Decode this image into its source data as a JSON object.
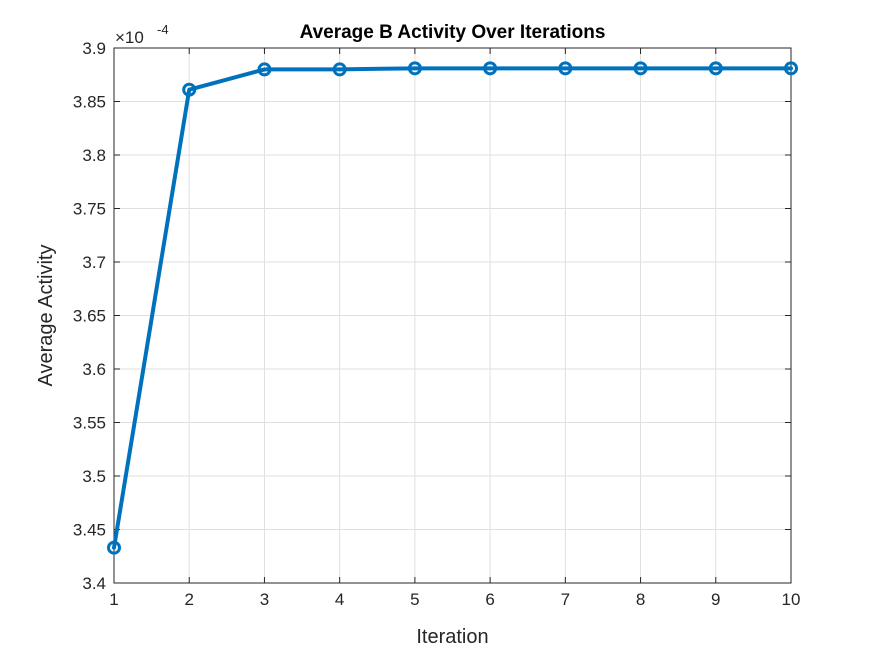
{
  "chart_data": {
    "type": "line",
    "title": "Average B Activity Over Iterations",
    "xlabel": "Iteration",
    "ylabel": "Average Activity",
    "y_exponent_base": "×10",
    "y_exponent_power": "-4",
    "xlim": [
      1,
      10
    ],
    "ylim": [
      3.4,
      3.9
    ],
    "x_ticks": [
      1,
      2,
      3,
      4,
      5,
      6,
      7,
      8,
      9,
      10
    ],
    "y_ticks": [
      3.4,
      3.45,
      3.5,
      3.55,
      3.6,
      3.65,
      3.7,
      3.75,
      3.8,
      3.85,
      3.9
    ],
    "y_tick_labels": [
      "3.4",
      "3.45",
      "3.5",
      "3.55",
      "3.6",
      "3.65",
      "3.7",
      "3.75",
      "3.8",
      "3.85",
      "3.9"
    ],
    "grid": true,
    "series": [
      {
        "x": [
          1,
          2,
          3,
          4,
          5,
          6,
          7,
          8,
          9,
          10
        ],
        "y": [
          3.433,
          3.861,
          3.88,
          3.88,
          3.881,
          3.881,
          3.881,
          3.881,
          3.881,
          3.881
        ],
        "color": "#0072BD",
        "marker": "circle"
      }
    ]
  }
}
